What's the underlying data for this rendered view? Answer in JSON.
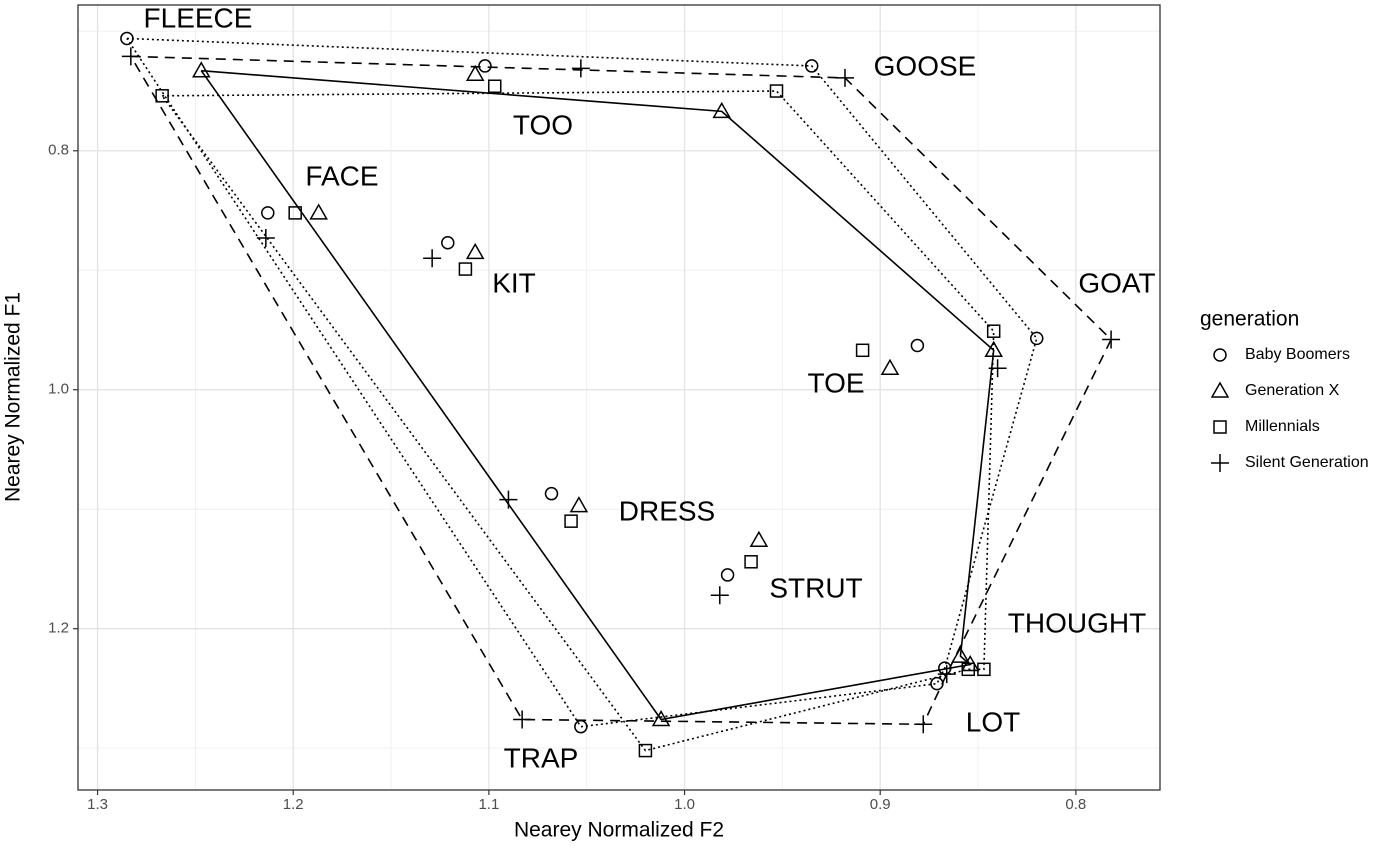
{
  "chart_data": {
    "type": "scatter",
    "x_label": "Nearey Normalized F2",
    "y_label": "Nearey Normalized F1",
    "legend_title": "generation",
    "legend": "right",
    "grid": true,
    "x_reversed": true,
    "y_reversed": true,
    "xlim": [
      0.757,
      1.31
    ],
    "ylim": [
      0.678,
      1.335
    ],
    "xticks": [
      1.3,
      1.2,
      1.1,
      {
        "value": 1,
        "label": "1.0"
      },
      0.9,
      0.8
    ],
    "yticks": [
      0.8,
      {
        "value": 1,
        "label": "1.0"
      },
      1.2
    ],
    "categories": [
      "FLEECE",
      "GOOSE",
      "TOO",
      "FACE",
      "KIT",
      "GOAT",
      "TOE",
      "DRESS",
      "STRUT",
      "THOUGHT",
      "LOT",
      "TRAP"
    ],
    "series": [
      {
        "name": "Baby Boomers",
        "color": "#000000",
        "shape": "circle",
        "line": "dotted",
        "x": [
          1.285,
          0.935,
          1.102,
          1.213,
          1.121,
          0.82,
          0.881,
          1.068,
          0.978,
          0.867,
          0.871,
          1.053
        ],
        "y": [
          0.706,
          0.729,
          0.729,
          0.852,
          0.877,
          0.957,
          0.963,
          1.087,
          1.155,
          1.233,
          1.246,
          1.282
        ]
      },
      {
        "name": "Generation X",
        "color": "#000000",
        "shape": "triangle",
        "line": "solid",
        "x": [
          1.247,
          0.981,
          1.107,
          1.187,
          1.107,
          0.842,
          0.895,
          1.054,
          0.962,
          0.859,
          0.854,
          1.012
        ],
        "y": [
          0.733,
          0.767,
          0.736,
          0.852,
          0.885,
          0.967,
          0.982,
          1.097,
          1.126,
          1.223,
          1.23,
          1.276
        ]
      },
      {
        "name": "Millennials",
        "color": "#000000",
        "shape": "square",
        "line": "dotted",
        "x": [
          1.267,
          0.953,
          1.097,
          1.199,
          1.112,
          0.842,
          0.909,
          1.058,
          0.966,
          0.847,
          0.855,
          1.02
        ],
        "y": [
          0.754,
          0.75,
          0.746,
          0.852,
          0.899,
          0.951,
          0.967,
          1.11,
          1.144,
          1.234,
          1.234,
          1.302
        ]
      },
      {
        "name": "Silent Generation",
        "color": "#000000",
        "shape": "plus",
        "line": "dashed",
        "x": [
          1.283,
          0.918,
          1.053,
          1.214,
          1.129,
          0.782,
          0.84,
          1.09,
          0.982,
          0.866,
          0.878,
          1.083
        ],
        "y": [
          0.721,
          0.739,
          0.731,
          0.873,
          0.89,
          0.958,
          0.982,
          1.092,
          1.172,
          1.238,
          1.28,
          1.276
        ]
      }
    ]
  }
}
